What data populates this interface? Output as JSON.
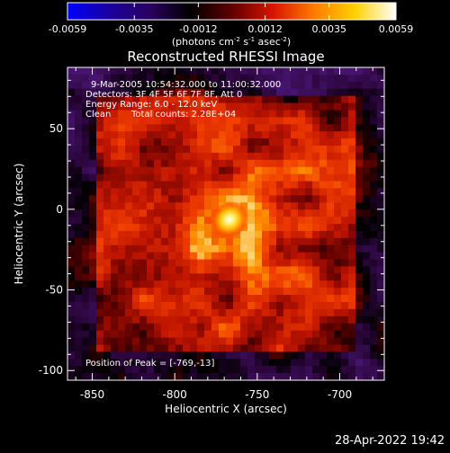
{
  "colorbar": {
    "min": -0.0059,
    "max": 0.0059,
    "tick_labels": [
      "-0.0059",
      "-0.0035",
      "-0.0012",
      "0.0012",
      "0.0035",
      "0.0059"
    ],
    "tick_values": [
      -0.0059,
      -0.0035,
      -0.0012,
      0.0012,
      0.0035,
      0.0059
    ],
    "unit_label": "(photons cm",
    "unit_exp1": "-2",
    "unit_mid": " s",
    "unit_exp2": "-1",
    "unit_tail": " asec",
    "unit_exp3": "-2",
    "unit_close": ")",
    "colors": [
      "#0000ff",
      "#1a00a0",
      "#2a0060",
      "#000000",
      "#600000",
      "#d81400",
      "#ff7a00",
      "#ffd200",
      "#ffffff"
    ]
  },
  "chart_data": {
    "type": "heatmap",
    "title": "Reconstructed RHESSI Image",
    "xlabel": "Heliocentric X (arcsec)",
    "ylabel": "Heliocentric Y (arcsec)",
    "xlim": [
      -865,
      -673
    ],
    "ylim": [
      -106,
      88
    ],
    "xticks": [
      -850,
      -800,
      -750,
      -700
    ],
    "yticks": [
      50,
      0,
      -50,
      -100
    ],
    "xtick_labels": [
      "-850",
      "-800",
      "-750",
      "-700"
    ],
    "ytick_labels": [
      "50",
      "0",
      "-50",
      "-100"
    ],
    "peak": {
      "x": -769,
      "y": -13
    },
    "colormap": "RHESSI red-temperature",
    "annotations": {
      "time_range": "9-Mar-2005 10:54:32.000 to 11:00:32.000",
      "detectors": "Detectors: 3F 4F 5F 6F 7F 8F, Att 0",
      "energy_range": "Energy Range: 6.0 - 12.0 keV",
      "method": "Clean",
      "total_counts": "Total counts: 2.28E+04",
      "peak_position": "Position of Peak = [-769,-13]"
    }
  },
  "footer": {
    "timestamp": "28-Apr-2022 19:42"
  }
}
